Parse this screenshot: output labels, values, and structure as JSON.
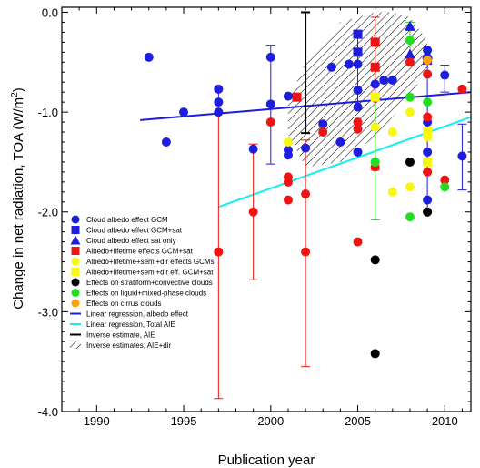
{
  "chart_data": {
    "type": "scatter",
    "title": "",
    "xlabel": "Publication year",
    "ylabel": "Change in net radiation, TOA (W/m",
    "ylabel_sup": "2",
    "ylabel_end": ")",
    "xlim": [
      1988,
      2011.5
    ],
    "ylim": [
      -4.0,
      0.05
    ],
    "xticks": [
      1990,
      1995,
      2000,
      2005,
      2010
    ],
    "yticks": [
      0.0,
      -1.0,
      -2.0,
      -3.0,
      -4.0
    ],
    "xtick_labels": [
      "1990",
      "1995",
      "2000",
      "2005",
      "2010"
    ],
    "ytick_labels": [
      "0.0",
      "-1.0",
      "-2.0",
      "-3.0",
      "-4.0"
    ],
    "grid": false,
    "legend_position": "lower-left",
    "colors": {
      "blue": "#1d1ddd",
      "red": "#ef1414",
      "yellow": "#f7f711",
      "black": "#000000",
      "green": "#22dd22",
      "orange": "#f8a010",
      "cyan": "#11f0f0"
    },
    "series": [
      {
        "name": "Cloud albedo effect GCM",
        "marker": "circle",
        "color": "#1d1ddd",
        "points": [
          [
            1993,
            -0.45
          ],
          [
            1994,
            -1.3
          ],
          [
            1995,
            -1.0
          ],
          [
            1997,
            -0.9
          ],
          [
            1997,
            -0.77
          ],
          [
            1997,
            -1.0
          ],
          [
            1999,
            -1.37
          ],
          [
            2000,
            -0.45
          ],
          [
            2000,
            -0.92
          ],
          [
            2001,
            -0.84
          ],
          [
            2001,
            -1.38
          ],
          [
            2001,
            -1.43
          ],
          [
            2002,
            -1.36
          ],
          [
            2003,
            -1.12
          ],
          [
            2003.5,
            -0.55
          ],
          [
            2004,
            -1.3
          ],
          [
            2004.5,
            -0.52
          ],
          [
            2005,
            -0.52
          ],
          [
            2005,
            -0.78
          ],
          [
            2005,
            -0.95
          ],
          [
            2005,
            -1.4
          ],
          [
            2006,
            -0.72
          ],
          [
            2006,
            -1.5
          ],
          [
            2006.5,
            -0.68
          ],
          [
            2007,
            -0.68
          ],
          [
            2009,
            -0.38
          ],
          [
            2009,
            -1.1
          ],
          [
            2009,
            -1.4
          ],
          [
            2009,
            -1.88
          ],
          [
            2010,
            -0.63
          ],
          [
            2011,
            -1.44
          ]
        ]
      },
      {
        "name": "Cloud albedo effect GCM+sat",
        "marker": "square",
        "color": "#1d1ddd",
        "points": [
          [
            2005,
            -0.22
          ],
          [
            2005,
            -0.4
          ],
          [
            2009,
            -0.48
          ]
        ]
      },
      {
        "name": "Cloud albedo effect sat only",
        "marker": "triangle",
        "color": "#1d1ddd",
        "points": [
          [
            2008,
            -0.14
          ],
          [
            2008,
            -0.42
          ],
          [
            2009,
            -0.42
          ]
        ]
      },
      {
        "name": "Albedo+lifetime effects GCM+sat",
        "marker": "square",
        "color": "#ef1414",
        "points": [
          [
            2001.5,
            -0.85
          ],
          [
            2006,
            -0.3
          ],
          [
            2006,
            -0.55
          ]
        ]
      },
      {
        "name": "Albedo+lifetime effects GCM",
        "marker": "circle",
        "color": "#ef1414",
        "points": [
          [
            1997,
            -2.4
          ],
          [
            1999,
            -2.0
          ],
          [
            2000,
            -1.1
          ],
          [
            2001,
            -1.65
          ],
          [
            2001,
            -1.7
          ],
          [
            2001,
            -1.88
          ],
          [
            2002,
            -1.82
          ],
          [
            2002,
            -2.4
          ],
          [
            2003,
            -1.2
          ],
          [
            2005,
            -1.1
          ],
          [
            2005,
            -1.17
          ],
          [
            2005,
            -2.3
          ],
          [
            2006,
            -0.3
          ],
          [
            2006,
            -0.86
          ],
          [
            2006,
            -1.55
          ],
          [
            2008,
            -0.5
          ],
          [
            2009,
            -0.62
          ],
          [
            2009,
            -1.05
          ],
          [
            2009,
            -1.6
          ],
          [
            2009,
            -2.0
          ],
          [
            2010,
            -1.68
          ],
          [
            2011,
            -0.77
          ]
        ]
      },
      {
        "name": "Albedo+lifetime+semi+dir effects GCMs",
        "marker": "circle",
        "color": "#f7f711",
        "points": [
          [
            2001,
            -1.3
          ],
          [
            2006,
            -1.15
          ],
          [
            2006,
            -1.5
          ],
          [
            2007,
            -1.2
          ],
          [
            2007,
            -1.8
          ],
          [
            2008,
            -1.0
          ],
          [
            2008,
            -1.75
          ],
          [
            2009,
            -1.25
          ]
        ]
      },
      {
        "name": "Albedo+lifetime+semi+dir eff. GCM+sat",
        "marker": "square",
        "color": "#f7f711",
        "points": [
          [
            2006,
            -0.85
          ],
          [
            2009,
            -1.2
          ],
          [
            2009,
            -1.5
          ]
        ]
      },
      {
        "name": "Effects on stratiform+convective clouds",
        "marker": "circle",
        "color": "#000000",
        "points": [
          [
            2006,
            -2.48
          ],
          [
            2006,
            -3.42
          ],
          [
            2008,
            -1.5
          ],
          [
            2009,
            -2.0
          ]
        ]
      },
      {
        "name": "Effects on liquid+mixed-phase clouds",
        "marker": "circle",
        "color": "#22dd22",
        "points": [
          [
            2006,
            -1.5
          ],
          [
            2008,
            -0.28
          ],
          [
            2008,
            -0.85
          ],
          [
            2008,
            -2.05
          ],
          [
            2009,
            -0.9
          ],
          [
            2010,
            -1.75
          ]
        ]
      },
      {
        "name": "Effects on cirrus clouds",
        "marker": "circle",
        "color": "#f8a010",
        "points": [
          [
            2009,
            -0.48
          ]
        ]
      }
    ],
    "error_bars": [
      {
        "x": 1997,
        "y": -2.4,
        "low": -3.87,
        "high": -1.0,
        "color": "#ef1414"
      },
      {
        "x": 1999,
        "y": -2.0,
        "low": -2.68,
        "high": -1.32,
        "color": "#ef1414"
      },
      {
        "x": 2002,
        "y": -2.4,
        "low": -3.55,
        "high": -1.28,
        "color": "#ef1414"
      },
      {
        "x": 2006,
        "y": -0.86,
        "low": -1.58,
        "high": -0.05,
        "color": "#ef1414"
      },
      {
        "x": 1997,
        "y": -0.9,
        "low": -1.0,
        "high": -0.77,
        "color": "#1d1ddd"
      },
      {
        "x": 2000,
        "y": -0.92,
        "low": -1.52,
        "high": -0.33,
        "color": "#1d1ddd"
      },
      {
        "x": 2005,
        "y": -0.4,
        "low": -0.95,
        "high": -0.22,
        "color": "#1d1ddd"
      },
      {
        "x": 2009,
        "y": -1.1,
        "low": -2.0,
        "high": -0.38,
        "color": "#1d1ddd"
      },
      {
        "x": 2010,
        "y": -0.63,
        "low": -0.8,
        "high": -0.53,
        "color": "#1d1ddd"
      },
      {
        "x": 2011,
        "y": -1.44,
        "low": -1.78,
        "high": -1.12,
        "color": "#1d1ddd"
      },
      {
        "x": 2008,
        "y": -0.28,
        "low": -0.5,
        "high": -0.1,
        "color": "#22dd22"
      },
      {
        "x": 2006,
        "y": -1.5,
        "low": -2.08,
        "high": -0.82,
        "color": "#22dd22"
      },
      {
        "x": 2002,
        "y": -0.6,
        "low": -1.21,
        "high": 0.0,
        "color": "#000000"
      }
    ],
    "regression_lines": [
      {
        "name": "Linear regression, albedo effect",
        "color": "#1d1ddd",
        "x": [
          1992.5,
          2011.5
        ],
        "y": [
          -1.08,
          -0.8
        ]
      },
      {
        "name": "Linear regression, Total AIE",
        "color": "#11f0f0",
        "x": [
          1997,
          2011.5
        ],
        "y": [
          -1.95,
          -1.05
        ]
      }
    ],
    "hatched_region": {
      "name": "Inverse estimates, AIE+dir",
      "polygon": [
        [
          2001,
          -0.88
        ],
        [
          2001.5,
          -0.7
        ],
        [
          2002,
          -0.5
        ],
        [
          2003,
          -0.35
        ],
        [
          2004,
          -0.1
        ],
        [
          2005,
          -0.05
        ],
        [
          2006,
          0.0
        ],
        [
          2007,
          0.0
        ],
        [
          2008,
          -0.05
        ],
        [
          2009,
          -0.28
        ],
        [
          2009,
          -0.55
        ],
        [
          2008,
          -0.85
        ],
        [
          2006,
          -1.25
        ],
        [
          2004,
          -1.5
        ],
        [
          2002,
          -1.55
        ],
        [
          2001,
          -1.22
        ]
      ]
    },
    "legend": [
      {
        "label": "Cloud albedo effect GCM",
        "marker": "circle",
        "color": "#1d1ddd"
      },
      {
        "label": "Cloud albedo effect GCM+sat",
        "marker": "square",
        "color": "#1d1ddd"
      },
      {
        "label": "Cloud albedo effect sat only",
        "marker": "triangle",
        "color": "#1d1ddd"
      },
      {
        "label": "Albedo+lifetime effects GCM+sat",
        "marker": "square",
        "color": "#ef1414"
      },
      {
        "label": "Albedo+lifetime+semi+dir effects GCMs",
        "marker": "circle",
        "color": "#f7f711"
      },
      {
        "label": "Albedo+lifetime+semi+dir eff. GCM+sat",
        "marker": "square",
        "color": "#f7f711"
      },
      {
        "label": "Effects on stratiform+convective clouds",
        "marker": "circle",
        "color": "#000000"
      },
      {
        "label": "Effects on liquid+mixed-phase clouds",
        "marker": "circle",
        "color": "#22dd22"
      },
      {
        "label": "Effects on cirrus clouds",
        "marker": "circle",
        "color": "#f8a010"
      },
      {
        "label": "Linear regression, albedo effect",
        "marker": "line",
        "color": "#1d1ddd"
      },
      {
        "label": "Linear regression, Total AIE",
        "marker": "line",
        "color": "#11f0f0"
      },
      {
        "label": "Inverse estimate, AIE",
        "marker": "line",
        "color": "#000000"
      },
      {
        "label": "Inverse estimates, AIE+dir",
        "marker": "hatch",
        "color": "#000000"
      }
    ]
  }
}
